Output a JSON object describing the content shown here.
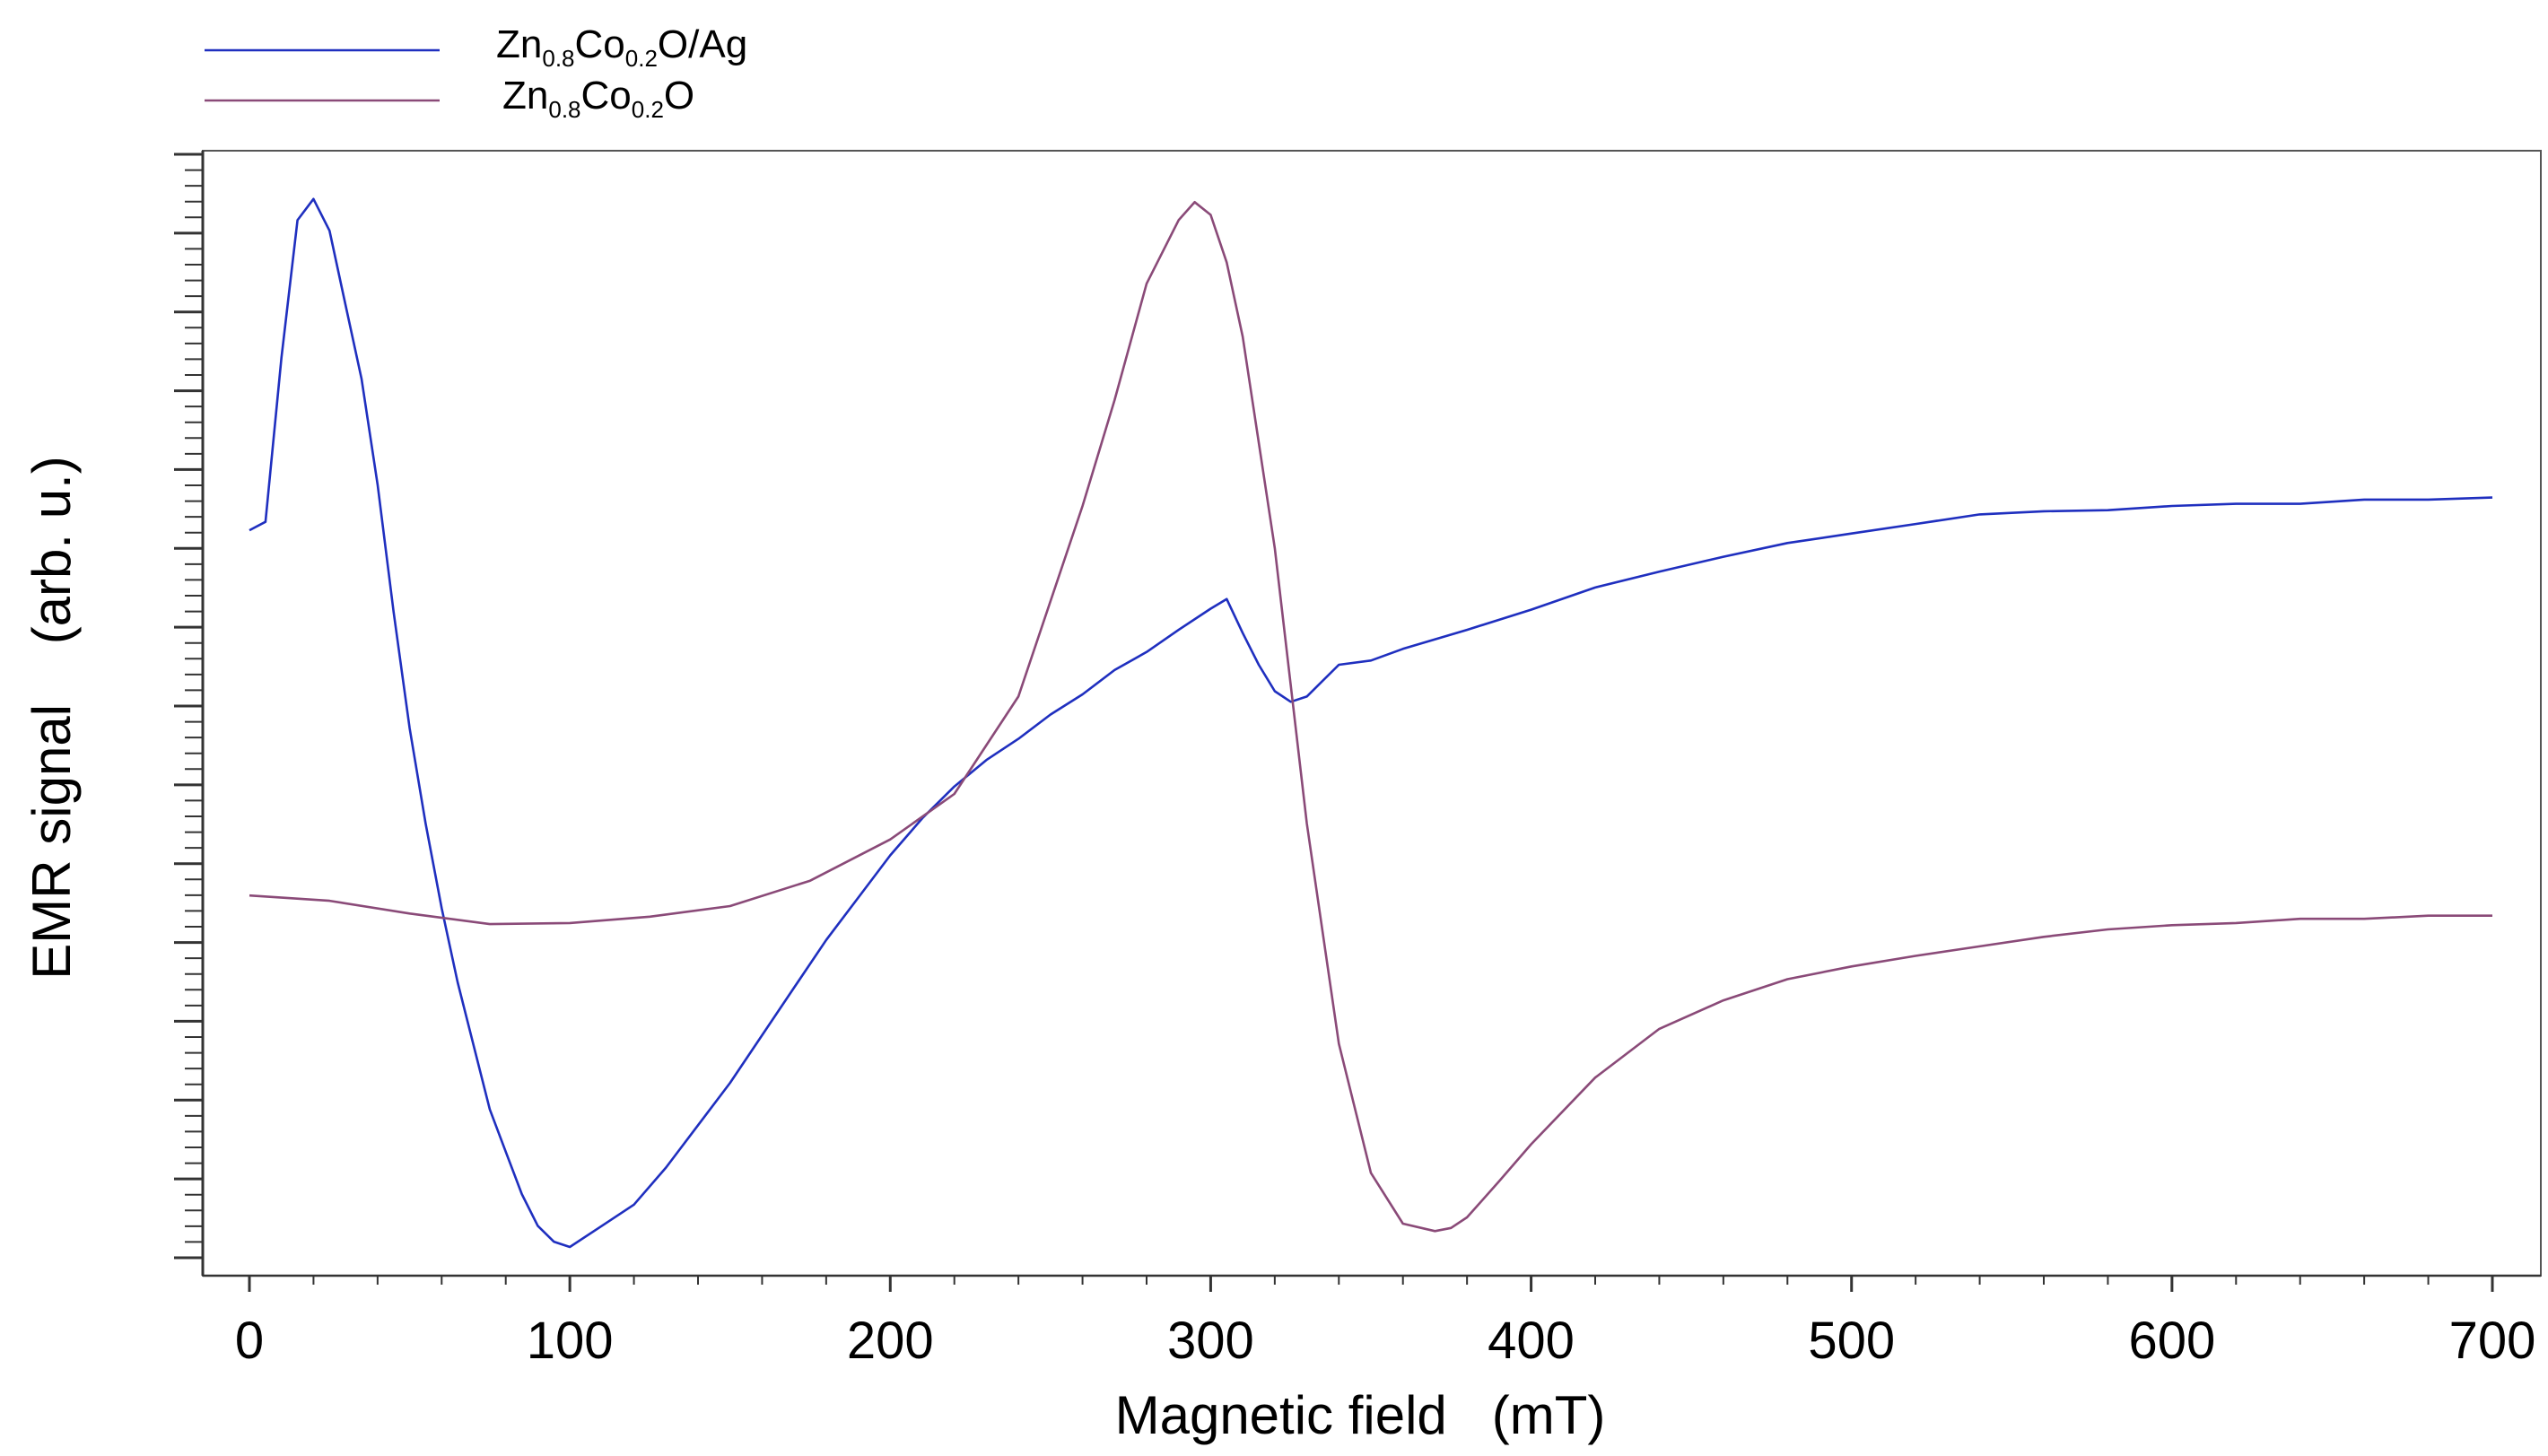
{
  "chart_data": {
    "type": "line",
    "xlabel": "Magnetic field   (mT)",
    "ylabel": "EMR signal    (arb. u.)",
    "xlim": [
      0,
      700
    ],
    "ylim": [
      0,
      100
    ],
    "x_ticks": [
      "0",
      "100",
      "200",
      "300",
      "400",
      "500",
      "600",
      "700"
    ],
    "y_tick_labels_shown": false,
    "grid": false,
    "legend_position": "top-left",
    "series": [
      {
        "name_parts": [
          "Zn",
          "0.8",
          "Co",
          "0.2",
          "O/Ag"
        ],
        "color": "#1f2fbf",
        "x": [
          0,
          5,
          10,
          15,
          20,
          25,
          30,
          35,
          40,
          45,
          50,
          55,
          60,
          65,
          70,
          75,
          80,
          85,
          90,
          95,
          100,
          110,
          120,
          130,
          140,
          150,
          160,
          170,
          180,
          190,
          200,
          210,
          220,
          230,
          240,
          250,
          260,
          270,
          280,
          290,
          300,
          305,
          310,
          315,
          320,
          325,
          330,
          340,
          350,
          360,
          380,
          400,
          420,
          440,
          460,
          480,
          500,
          520,
          540,
          560,
          580,
          600,
          620,
          640,
          660,
          680,
          700
        ],
        "values": [
          67.7,
          68.5,
          84,
          97,
          99,
          96,
          89,
          82,
          72,
          60,
          49,
          40,
          32,
          25,
          19,
          13,
          9,
          5,
          2,
          0.5,
          0,
          2,
          4,
          7.5,
          11.5,
          15.5,
          20,
          24.5,
          29,
          33,
          37,
          40.5,
          43.5,
          46,
          48,
          50.3,
          52.2,
          54.5,
          56.2,
          58.3,
          60.3,
          61.2,
          58,
          55,
          52.5,
          51.5,
          52,
          55,
          55.4,
          56.5,
          58.3,
          60.2,
          62.3,
          63.8,
          65.2,
          66.5,
          67.4,
          68.3,
          69.2,
          69.5,
          69.6,
          70,
          70.2,
          70.2,
          70.6,
          70.6,
          70.8
        ]
      },
      {
        "name_parts": [
          "Zn",
          "0.8",
          "Co",
          "0.2",
          "O"
        ],
        "color": "#8a4a78",
        "x": [
          0,
          25,
          50,
          75,
          100,
          125,
          150,
          175,
          200,
          220,
          240,
          260,
          270,
          280,
          290,
          295,
          300,
          305,
          310,
          320,
          330,
          340,
          350,
          360,
          370,
          375,
          380,
          390,
          400,
          420,
          440,
          460,
          480,
          500,
          520,
          540,
          560,
          580,
          600,
          620,
          640,
          660,
          680,
          700
        ],
        "values": [
          33.2,
          32.7,
          31.5,
          30.5,
          30.6,
          31.2,
          32.2,
          34.6,
          38.5,
          42.8,
          52,
          70,
          80,
          91,
          97,
          98.7,
          97.5,
          93,
          86,
          66,
          40,
          19.2,
          7,
          2.2,
          1.5,
          1.8,
          2.8,
          6.2,
          9.7,
          16,
          20.6,
          23.3,
          25.3,
          26.5,
          27.5,
          28.4,
          29.3,
          30,
          30.4,
          30.6,
          31,
          31,
          31.3,
          31.3
        ]
      }
    ]
  },
  "legend": {
    "entries": [
      {
        "base1": "Zn",
        "sub1": "0.8",
        "base2": "Co",
        "sub2": "0.2",
        "suffix": "O/Ag",
        "color": "#1f2fbf"
      },
      {
        "base1": "Zn",
        "sub1": "0.8",
        "base2": "Co",
        "sub2": "0.2",
        "suffix": "O",
        "color": "#8a4a78"
      }
    ]
  }
}
